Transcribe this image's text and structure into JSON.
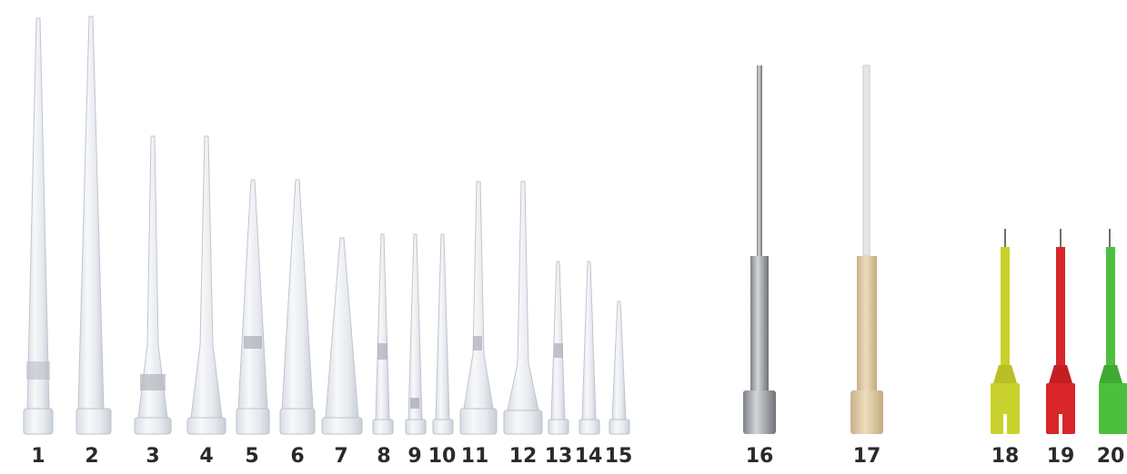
{
  "tips": [
    {
      "label": "1",
      "color": "clear"
    },
    {
      "label": "2",
      "color": "clear"
    },
    {
      "label": "3",
      "color": "clear"
    },
    {
      "label": "4",
      "color": "clear"
    },
    {
      "label": "5",
      "color": "clear"
    },
    {
      "label": "6",
      "color": "clear"
    },
    {
      "label": "7",
      "color": "clear"
    },
    {
      "label": "8",
      "color": "clear"
    },
    {
      "label": "9",
      "color": "clear"
    },
    {
      "label": "10",
      "color": "clear"
    },
    {
      "label": "11",
      "color": "clear"
    },
    {
      "label": "12",
      "color": "clear"
    },
    {
      "label": "13",
      "color": "clear"
    },
    {
      "label": "14",
      "color": "clear"
    },
    {
      "label": "15",
      "color": "clear"
    },
    {
      "label": "16",
      "color": "#9ea0a3"
    },
    {
      "label": "17",
      "color": "#dcc8a4"
    },
    {
      "label": "18",
      "color": "#c9d12c"
    },
    {
      "label": "19",
      "color": "#d8262a"
    },
    {
      "label": "20",
      "color": "#4cbf3c"
    }
  ]
}
